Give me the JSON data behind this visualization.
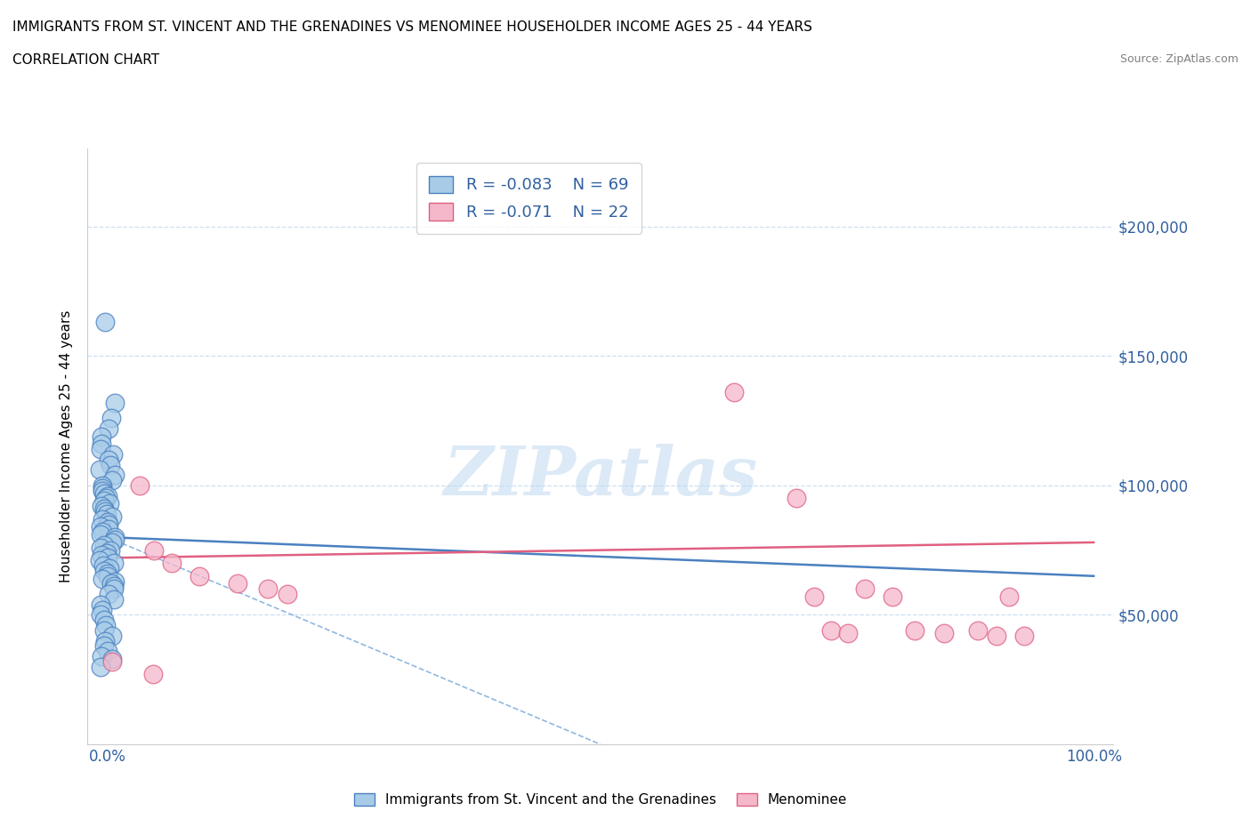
{
  "title_line1": "IMMIGRANTS FROM ST. VINCENT AND THE GRENADINES VS MENOMINEE HOUSEHOLDER INCOME AGES 25 - 44 YEARS",
  "title_line2": "CORRELATION CHART",
  "source_text": "Source: ZipAtlas.com",
  "ylabel": "Householder Income Ages 25 - 44 years",
  "xlim": [
    -0.02,
    1.02
  ],
  "ylim": [
    0,
    230000
  ],
  "ytick_vals": [
    50000,
    100000,
    150000,
    200000
  ],
  "ytick_labels": [
    "$50,000",
    "$100,000",
    "$150,000",
    "$200,000"
  ],
  "watermark": "ZIPatlas",
  "blue_marker_color": "#a8cce8",
  "blue_edge_color": "#4a80c0",
  "pink_marker_color": "#f5b8cb",
  "pink_edge_color": "#e06080",
  "legend_r1": "R = -0.083",
  "legend_n1": "N = 69",
  "legend_r2": "R = -0.071",
  "legend_n2": "N = 22",
  "blue_scatter_x": [
    0.0,
    0.0,
    0.0,
    0.0,
    0.0,
    0.0,
    0.0,
    0.0,
    0.0,
    0.0,
    0.0,
    0.0,
    0.0,
    0.0,
    0.0,
    0.0,
    0.0,
    0.0,
    0.0,
    0.0,
    0.0,
    0.0,
    0.0,
    0.0,
    0.0,
    0.0,
    0.0,
    0.0,
    0.0,
    0.0,
    0.0,
    0.0,
    0.0,
    0.0,
    0.0,
    0.0,
    0.0,
    0.0,
    0.0,
    0.0,
    0.0,
    0.0,
    0.0,
    0.0,
    0.0,
    0.0,
    0.0,
    0.0,
    0.0,
    0.0,
    0.0,
    0.0,
    0.0,
    0.0,
    0.0,
    0.0,
    0.0,
    0.0,
    0.0,
    0.0,
    0.0,
    0.0,
    0.0,
    0.0,
    0.0,
    0.0,
    0.0,
    0.0,
    0.0
  ],
  "blue_scatter_y": [
    163000,
    132000,
    126000,
    122000,
    119000,
    116000,
    114000,
    112000,
    110000,
    108000,
    106000,
    104000,
    102000,
    100000,
    99000,
    98000,
    97000,
    96000,
    95000,
    94000,
    93000,
    92000,
    91000,
    90000,
    89000,
    88000,
    87000,
    86000,
    85000,
    84000,
    83000,
    82000,
    81000,
    80000,
    79000,
    78000,
    77000,
    76000,
    75000,
    74000,
    73000,
    72000,
    71000,
    70000,
    69000,
    68000,
    67000,
    66000,
    65000,
    64000,
    63000,
    62000,
    61000,
    60000,
    58000,
    56000,
    54000,
    52000,
    50000,
    48000,
    46000,
    44000,
    42000,
    40000,
    38000,
    36000,
    34000,
    33000,
    30000
  ],
  "pink_scatter_x": [
    0.0,
    0.03,
    0.05,
    0.07,
    0.09,
    0.13,
    0.16,
    0.18,
    0.64,
    0.7,
    0.72,
    0.73,
    0.75,
    0.77,
    0.8,
    0.82,
    0.85,
    0.88,
    0.9,
    0.91,
    0.93,
    0.05
  ],
  "pink_scatter_y": [
    32000,
    100000,
    75000,
    70000,
    65000,
    62000,
    60000,
    58000,
    136000,
    95000,
    57000,
    44000,
    43000,
    60000,
    57000,
    44000,
    43000,
    44000,
    42000,
    57000,
    42000,
    27000
  ],
  "blue_trend_x": [
    0.0,
    1.0
  ],
  "blue_trend_y": [
    80000,
    65000
  ],
  "pink_trend_x": [
    0.0,
    1.0
  ],
  "pink_trend_y": [
    72000,
    78000
  ],
  "dashed_line_x": [
    0.0,
    0.5
  ],
  "dashed_line_y": [
    80000,
    0
  ],
  "blue_trend_color": "#4a80c0",
  "pink_trend_color": "#e06080",
  "dashed_color": "#90b8e0",
  "grid_color": "#c0d8f0",
  "axis_label_color": "#3060a0"
}
